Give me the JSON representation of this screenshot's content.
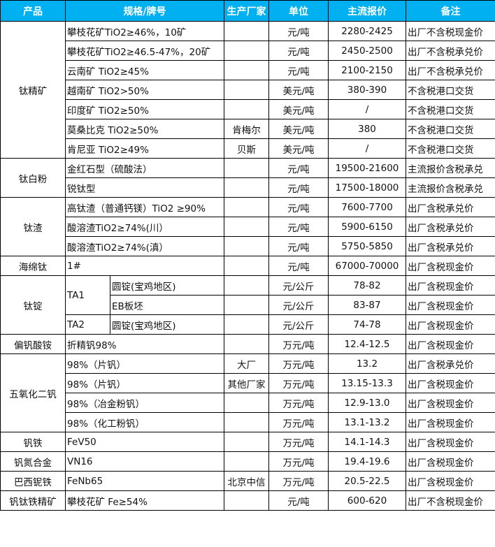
{
  "header": {
    "product": "产品",
    "spec": "规格/牌号",
    "producer": "生产厂家",
    "unit": "单位",
    "price": "主流报价",
    "note": "备注"
  },
  "accent_color": "#00B0F0",
  "groups": [
    {
      "product": "钛精矿",
      "rows": [
        {
          "spec": "攀枝花矿TiO2≥46%，10矿",
          "producer": "",
          "unit": "元/吨",
          "price": "2280-2425",
          "note": "出厂不含税现金价"
        },
        {
          "spec": "攀枝花矿TiO2≥46.5-47%，20矿",
          "producer": "",
          "unit": "元/吨",
          "price": "2450-2500",
          "note": "出厂不含税承兑价"
        },
        {
          "spec": "云南矿 TiO2≥45%",
          "producer": "",
          "unit": "元/吨",
          "price": "2100-2150",
          "note": "出厂不含税承兑价"
        },
        {
          "spec": "越南矿 TiO2>50%",
          "producer": "",
          "unit": "美元/吨",
          "price": "380-390",
          "note": "不含税港口交货"
        },
        {
          "spec": "印度矿 TiO2≥50%",
          "producer": "",
          "unit": "美元/吨",
          "price": "/",
          "note": "不含税港口交货"
        },
        {
          "spec": "莫桑比克 TiO2≥50%",
          "producer": "肯梅尔",
          "unit": "美元/吨",
          "price": "380",
          "note": "不含税港口交货"
        },
        {
          "spec": "肯尼亚 TiO2≥49%",
          "producer": "贝斯",
          "unit": "美元/吨",
          "price": "/",
          "note": "不含税港口交货"
        }
      ]
    },
    {
      "product": "钛白粉",
      "rows": [
        {
          "spec": "金红石型（硫酸法）",
          "producer": "",
          "unit": "元/吨",
          "price": "19500-21600",
          "note": "主流报价含税承兑"
        },
        {
          "spec": "锐钛型",
          "producer": "",
          "unit": "元/吨",
          "price": "17500-18000",
          "note": "主流报价含税承兑"
        }
      ]
    },
    {
      "product": "钛渣",
      "rows": [
        {
          "spec": "高钛渣（普通钙镁）TiO2 ≥90%",
          "producer": "",
          "unit": "元/吨",
          "price": "7600-7700",
          "note": "出厂含税承兑价"
        },
        {
          "spec": "酸溶渣TiO2≥74%(川）",
          "producer": "",
          "unit": "元/吨",
          "price": "5900-6150",
          "note": "出厂含税承兑价"
        },
        {
          "spec": "酸溶渣TiO2≥74%(滇）",
          "producer": "",
          "unit": "元/吨",
          "price": "5750-5850",
          "note": "出厂含税承兑价"
        }
      ]
    },
    {
      "product": "海绵钛",
      "rows": [
        {
          "spec": "1#",
          "producer": "",
          "unit": "元/吨",
          "price": "67000-70000",
          "note": "出厂含税现金价"
        }
      ]
    },
    {
      "product": "钛锭",
      "rows": [
        {
          "spec": "TA1",
          "subs": [
            {
              "sub": "圆锭(宝鸡地区)",
              "producer": "",
              "unit": "元/公斤",
              "price": "78-82",
              "note": "出厂含税现金价"
            },
            {
              "sub": "EB板坯",
              "producer": "",
              "unit": "元/公斤",
              "price": "83-87",
              "note": "出厂含税现金价"
            }
          ]
        },
        {
          "spec": "TA2",
          "subs": [
            {
              "sub": "圆锭(宝鸡地区)",
              "producer": "",
              "unit": "元/公斤",
              "price": "74-78",
              "note": "出厂含税现金价"
            }
          ]
        }
      ]
    },
    {
      "product": "偏钒酸铵",
      "rows": [
        {
          "spec": "折精钒98%",
          "producer": "",
          "unit": "万元/吨",
          "price": "12.4-12.5",
          "note": "出厂含税现金价"
        }
      ]
    },
    {
      "product": "五氧化二钒",
      "rows": [
        {
          "spec": "98%（片钒）",
          "producer": "大厂",
          "unit": "万元/吨",
          "price": "13.2",
          "note": "出厂含税承兑价"
        },
        {
          "spec": "98%（片钒）",
          "producer": "其他厂家",
          "unit": "万元/吨",
          "price": "13.15-13.3",
          "note": "出厂含税现金价"
        },
        {
          "spec": "98%（冶金粉钒）",
          "producer": "",
          "unit": "万元/吨",
          "price": "12.9-13.0",
          "note": "出厂含税现金价"
        },
        {
          "spec": "98%（化工粉钒）",
          "producer": "",
          "unit": "万元/吨",
          "price": "13.1-13.2",
          "note": "出厂含税现金价"
        }
      ]
    },
    {
      "product": "钒铁",
      "rows": [
        {
          "spec": "FeV50",
          "producer": "",
          "unit": "万元/吨",
          "price": "14.1-14.3",
          "note": "出厂含税现金价"
        }
      ]
    },
    {
      "product": "钒氮合金",
      "rows": [
        {
          "spec": "VN16",
          "producer": "",
          "unit": "万元/吨",
          "price": "19.4-19.6",
          "note": "出厂含税现金价"
        }
      ]
    },
    {
      "product": "巴西铌铁",
      "rows": [
        {
          "spec": "FeNb65",
          "producer": "北京中信",
          "unit": "万元/吨",
          "price": "20.5-22.5",
          "note": "出厂含税现金价"
        }
      ]
    },
    {
      "product": "钒钛铁精矿",
      "rows": [
        {
          "spec": "攀枝花矿 Fe≥54%",
          "producer": "",
          "unit": "元/吨",
          "price": "600-620",
          "note": "出厂不含税现金价"
        }
      ]
    }
  ]
}
